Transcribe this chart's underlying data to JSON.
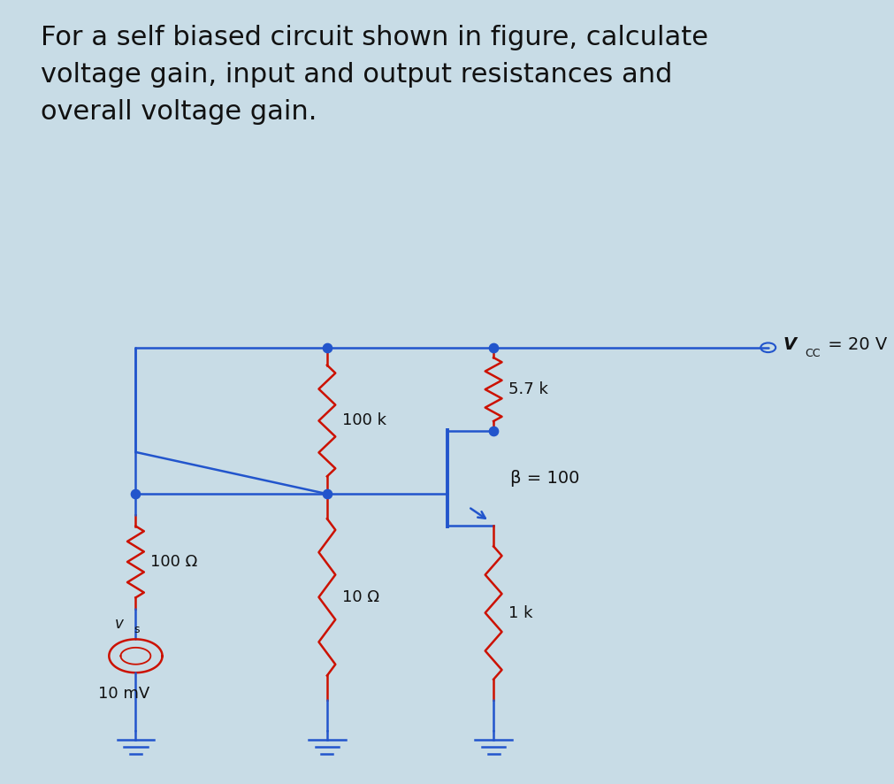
{
  "title_text": "For a self biased circuit shown in figure, calculate\nvoltage gain, input and output resistances and\noverall voltage gain.",
  "bg_color": "#c8dce6",
  "circuit_bg": "#e8eef2",
  "title_fontsize": 22,
  "wire_color": "#2255cc",
  "resistor_color": "#cc1100",
  "text_color": "#111111",
  "r1_label": "100 k",
  "r2_label": "5.7 k",
  "r3_label": "100 Ω",
  "r4_label": "10 Ω",
  "r5_label": "1 k",
  "beta_label": "β = 100",
  "vcc_text": "V",
  "vcc_sub": "CC",
  "vcc_val": " = 20 V",
  "vs_label": "v",
  "vs_sub": "s",
  "vs_val": "10 mV"
}
